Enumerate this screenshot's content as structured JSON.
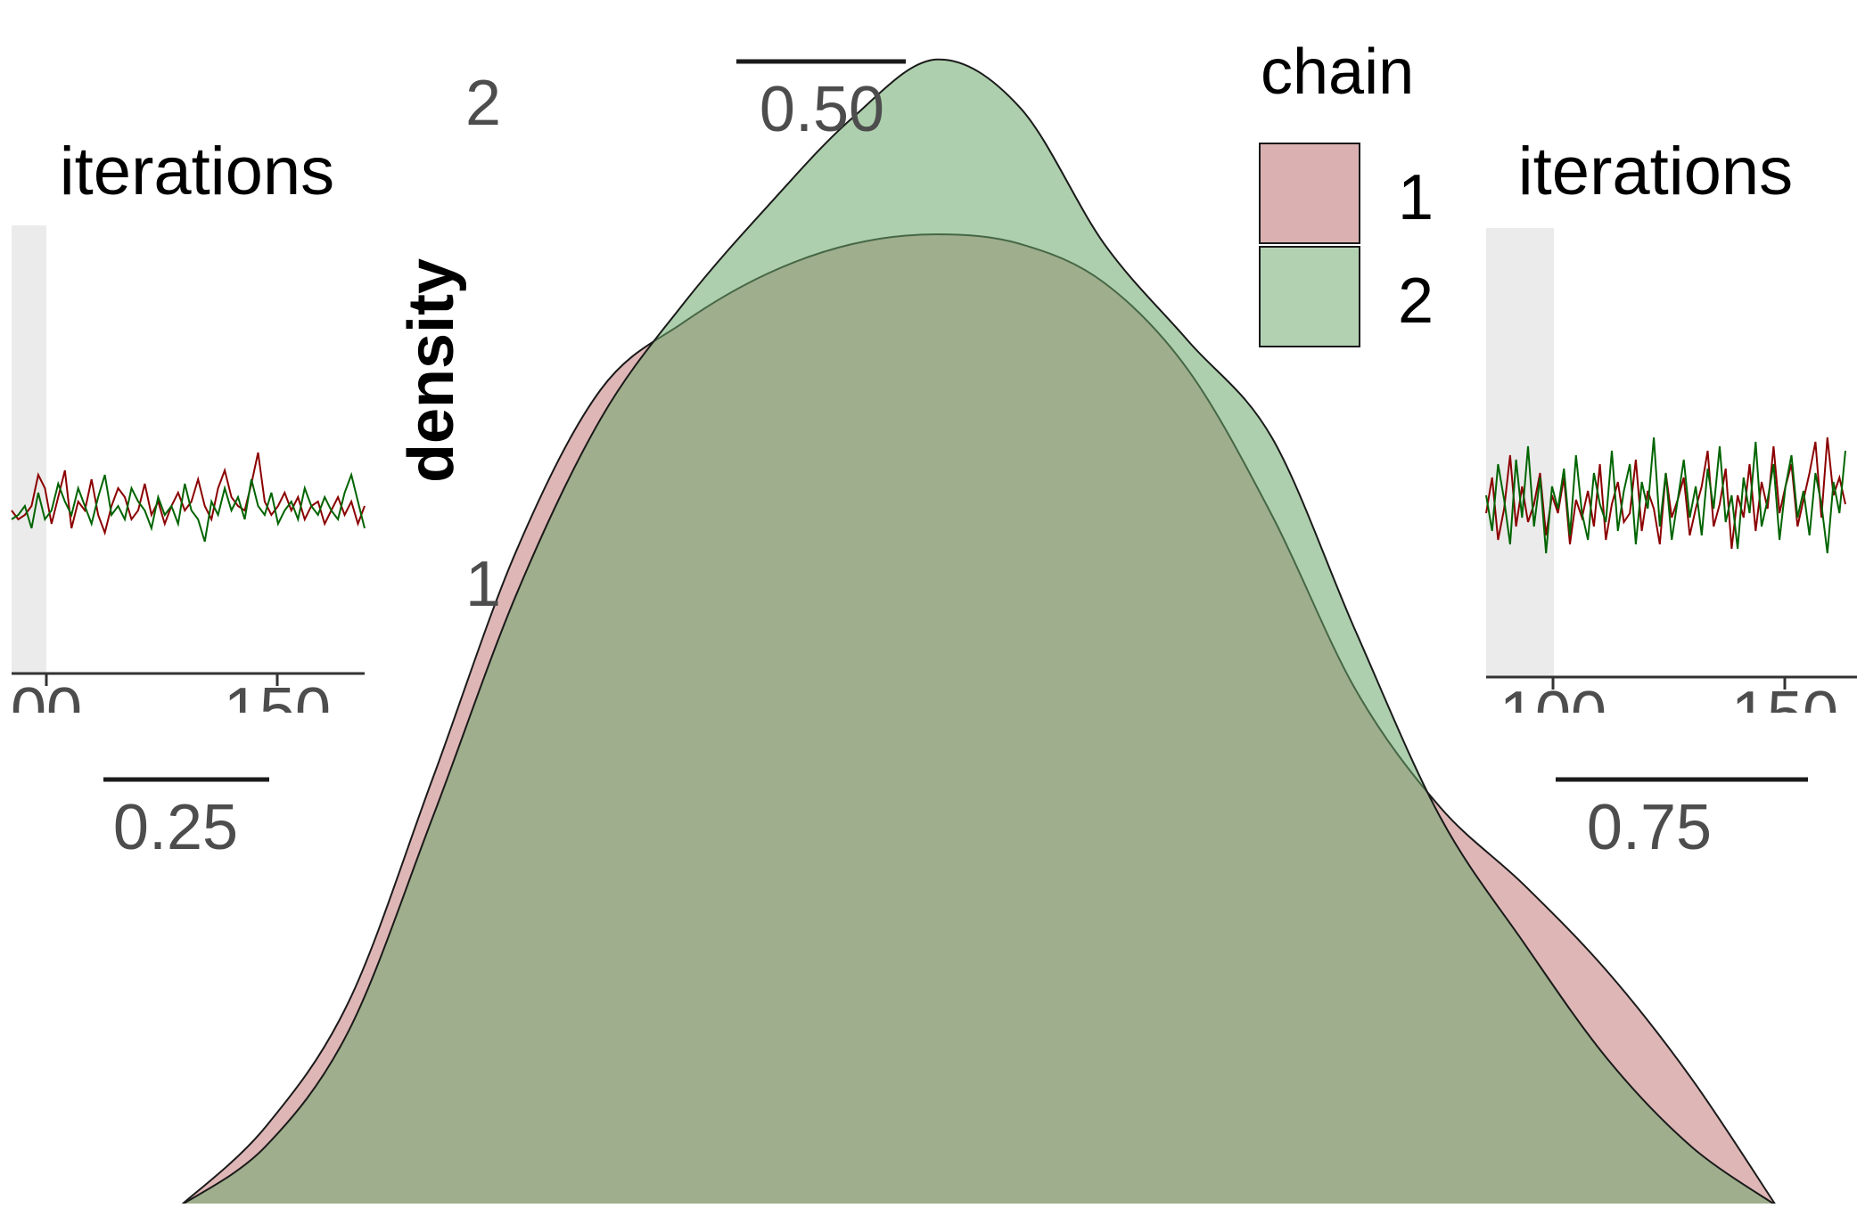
{
  "chart_data": [
    {
      "type": "area",
      "ylabel": "density",
      "y_ticks": [
        "1",
        "2"
      ],
      "x_ticks_visible": [
        "0.25",
        "0.50",
        "0.75"
      ],
      "legend": {
        "title": "chain",
        "position": "top-right",
        "entries": [
          {
            "label": "1",
            "color": "#dbb0b0"
          },
          {
            "label": "2",
            "color": "#b1d1b1"
          }
        ]
      },
      "series": [
        {
          "name": "1",
          "color": "#c47a7a",
          "points": [
            [
              0.2,
              0.0
            ],
            [
              0.24,
              0.16
            ],
            [
              0.28,
              0.42
            ],
            [
              0.32,
              0.88
            ],
            [
              0.36,
              1.35
            ],
            [
              0.4,
              1.68
            ],
            [
              0.44,
              1.82
            ],
            [
              0.48,
              1.92
            ],
            [
              0.52,
              1.98
            ],
            [
              0.56,
              2.0
            ],
            [
              0.6,
              1.98
            ],
            [
              0.64,
              1.9
            ],
            [
              0.68,
              1.72
            ],
            [
              0.72,
              1.42
            ],
            [
              0.76,
              1.06
            ],
            [
              0.8,
              0.82
            ],
            [
              0.84,
              0.66
            ],
            [
              0.88,
              0.48
            ],
            [
              0.92,
              0.26
            ],
            [
              0.96,
              0.0
            ]
          ]
        },
        {
          "name": "2",
          "color": "#6aa86a",
          "points": [
            [
              0.2,
              0.0
            ],
            [
              0.24,
              0.12
            ],
            [
              0.28,
              0.36
            ],
            [
              0.32,
              0.8
            ],
            [
              0.36,
              1.26
            ],
            [
              0.4,
              1.62
            ],
            [
              0.44,
              1.86
            ],
            [
              0.48,
              2.06
            ],
            [
              0.52,
              2.24
            ],
            [
              0.56,
              2.36
            ],
            [
              0.6,
              2.26
            ],
            [
              0.64,
              1.98
            ],
            [
              0.68,
              1.78
            ],
            [
              0.72,
              1.58
            ],
            [
              0.76,
              1.18
            ],
            [
              0.8,
              0.8
            ],
            [
              0.84,
              0.54
            ],
            [
              0.88,
              0.3
            ],
            [
              0.92,
              0.12
            ],
            [
              0.96,
              0.0
            ]
          ]
        }
      ]
    },
    {
      "type": "line",
      "title": "iterations",
      "x_ticks_visible": [
        "00",
        "150"
      ],
      "series": [
        {
          "name": "1",
          "color": "#8b0000",
          "values": [
            0.36,
            0.34,
            0.35,
            0.37,
            0.44,
            0.41,
            0.33,
            0.39,
            0.45,
            0.32,
            0.38,
            0.36,
            0.43,
            0.35,
            0.31,
            0.37,
            0.41,
            0.39,
            0.34,
            0.36,
            0.42,
            0.35,
            0.38,
            0.33,
            0.37,
            0.4,
            0.36,
            0.38,
            0.43,
            0.37,
            0.34,
            0.41,
            0.45,
            0.39,
            0.37,
            0.36,
            0.42,
            0.49,
            0.38,
            0.35,
            0.37,
            0.4,
            0.36,
            0.39,
            0.34,
            0.37,
            0.38,
            0.33,
            0.36,
            0.39,
            0.35,
            0.38,
            0.33,
            0.37
          ]
        },
        {
          "name": "2",
          "color": "#006400",
          "values": [
            0.34,
            0.35,
            0.37,
            0.32,
            0.4,
            0.34,
            0.36,
            0.42,
            0.38,
            0.35,
            0.41,
            0.37,
            0.33,
            0.39,
            0.44,
            0.35,
            0.37,
            0.34,
            0.41,
            0.38,
            0.36,
            0.32,
            0.39,
            0.35,
            0.37,
            0.33,
            0.42,
            0.36,
            0.34,
            0.29,
            0.38,
            0.35,
            0.41,
            0.36,
            0.39,
            0.34,
            0.43,
            0.37,
            0.35,
            0.4,
            0.33,
            0.36,
            0.38,
            0.34,
            0.41,
            0.37,
            0.35,
            0.39,
            0.36,
            0.34,
            0.4,
            0.44,
            0.38,
            0.32
          ]
        }
      ]
    },
    {
      "type": "line",
      "title": "iterations",
      "x_ticks_visible": [
        "100",
        "150"
      ],
      "series": [
        {
          "name": "1",
          "color": "#8b0000",
          "values": [
            0.36,
            0.44,
            0.3,
            0.37,
            0.49,
            0.33,
            0.42,
            0.34,
            0.38,
            0.45,
            0.31,
            0.4,
            0.36,
            0.44,
            0.29,
            0.39,
            0.35,
            0.41,
            0.33,
            0.47,
            0.3,
            0.38,
            0.43,
            0.34,
            0.36,
            0.48,
            0.32,
            0.41,
            0.37,
            0.29,
            0.45,
            0.35,
            0.39,
            0.44,
            0.31,
            0.37,
            0.42,
            0.5,
            0.33,
            0.38,
            0.46,
            0.28,
            0.4,
            0.35,
            0.47,
            0.32,
            0.43,
            0.37,
            0.51,
            0.36,
            0.42,
            0.47,
            0.33,
            0.39,
            0.45,
            0.52,
            0.35,
            0.53,
            0.4,
            0.44,
            0.38
          ]
        },
        {
          "name": "2",
          "color": "#006400",
          "values": [
            0.4,
            0.32,
            0.47,
            0.39,
            0.29,
            0.48,
            0.35,
            0.51,
            0.33,
            0.44,
            0.27,
            0.42,
            0.37,
            0.46,
            0.31,
            0.49,
            0.36,
            0.3,
            0.45,
            0.38,
            0.34,
            0.5,
            0.32,
            0.41,
            0.47,
            0.29,
            0.43,
            0.37,
            0.53,
            0.33,
            0.45,
            0.3,
            0.39,
            0.48,
            0.35,
            0.42,
            0.31,
            0.46,
            0.37,
            0.51,
            0.34,
            0.4,
            0.28,
            0.44,
            0.36,
            0.52,
            0.33,
            0.39,
            0.47,
            0.3,
            0.42,
            0.49,
            0.35,
            0.41,
            0.31,
            0.45,
            0.38,
            0.27,
            0.43,
            0.36,
            0.5
          ]
        }
      ]
    }
  ]
}
